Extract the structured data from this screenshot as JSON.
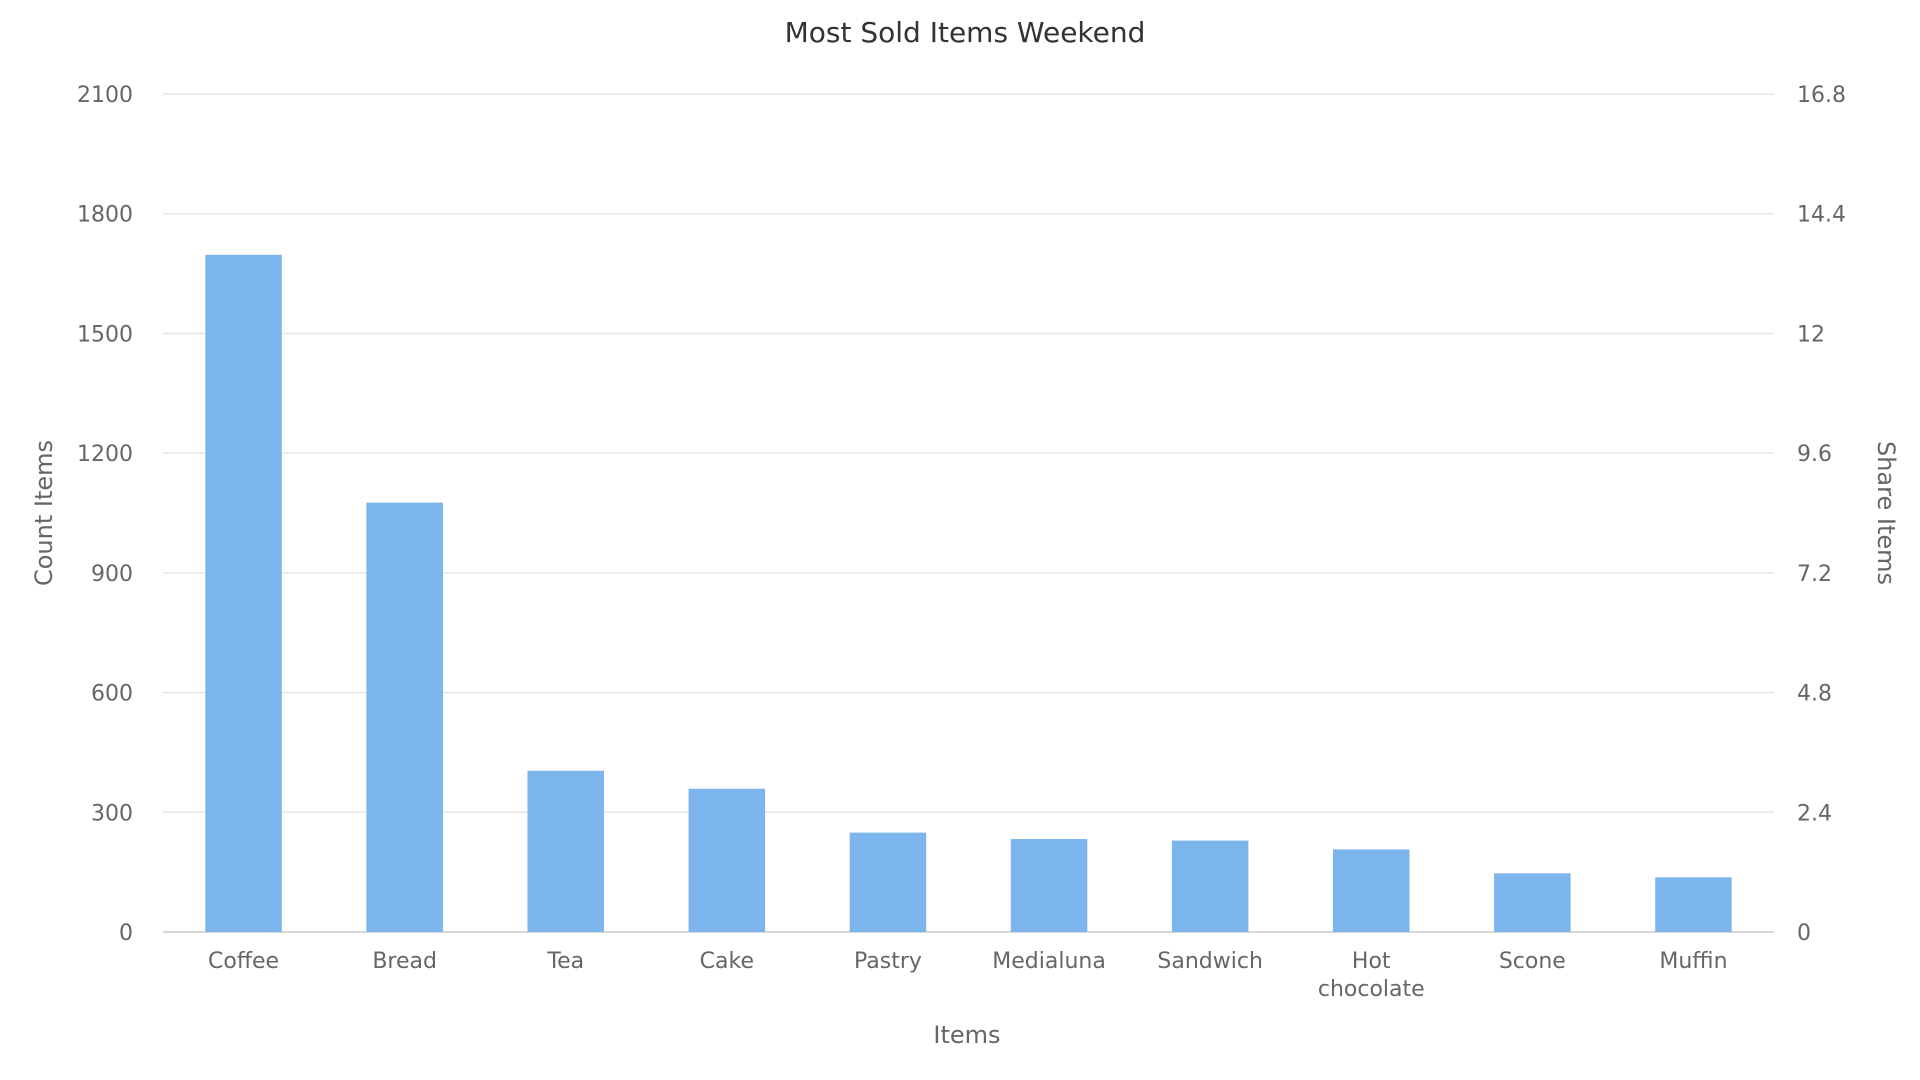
{
  "chart_data": {
    "type": "bar",
    "title": "Most Sold Items Weekend",
    "xlabel": "Items",
    "ylabel": "Count Items",
    "y2label": "Share Items",
    "categories": [
      "Coffee",
      "Bread",
      "Tea",
      "Cake",
      "Pastry",
      "Medialuna",
      "Sandwich",
      "Hot chocolate",
      "Scone",
      "Muffin"
    ],
    "series": [
      {
        "values": [
          1697,
          1076,
          404,
          359,
          249,
          233,
          229,
          207,
          147,
          137
        ]
      }
    ],
    "ylim": [
      0,
      2100
    ],
    "yticks": [
      "0",
      "300",
      "600",
      "900",
      "1200",
      "1500",
      "1800",
      "2100"
    ],
    "y2lim": [
      0,
      16.8
    ],
    "y2ticks": [
      "0",
      "2.4",
      "4.8",
      "7.2",
      "9.6",
      "12",
      "14.4",
      "16.8"
    ],
    "bar_color": "#7cb5ec",
    "grid": true,
    "legend": "none"
  }
}
